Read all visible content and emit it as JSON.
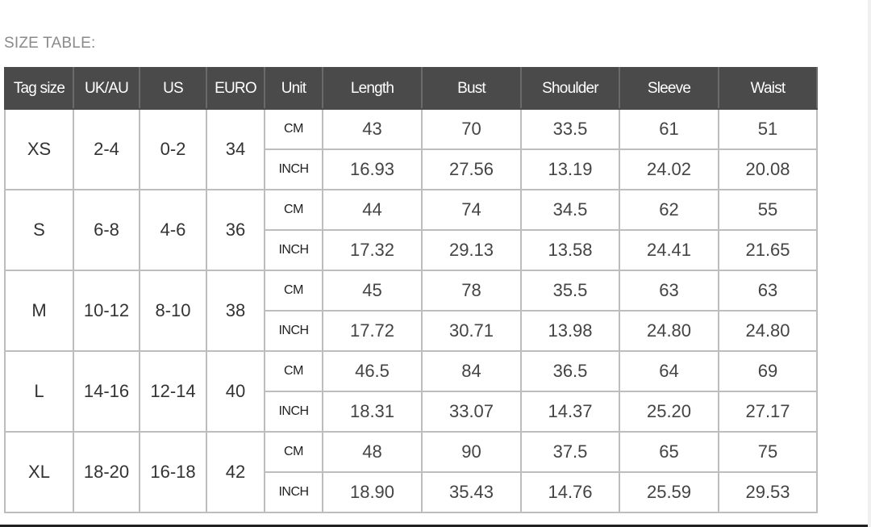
{
  "title": "SIZE TABLE:",
  "headers": [
    "Tag size",
    "UK/AU",
    "US",
    "EURO",
    "Unit",
    "Length",
    "Bust",
    "Shoulder",
    "Sleeve",
    "Waist"
  ],
  "rows": [
    {
      "tag": "XS",
      "ukau": "2-4",
      "us": "0-2",
      "euro": "34",
      "cm": {
        "unit": "CM",
        "values": [
          "43",
          "70",
          "33.5",
          "61",
          "51"
        ]
      },
      "inch": {
        "unit": "INCH",
        "values": [
          "16.93",
          "27.56",
          "13.19",
          "24.02",
          "20.08"
        ]
      }
    },
    {
      "tag": "S",
      "ukau": "6-8",
      "us": "4-6",
      "euro": "36",
      "cm": {
        "unit": "CM",
        "values": [
          "44",
          "74",
          "34.5",
          "62",
          "55"
        ]
      },
      "inch": {
        "unit": "INCH",
        "values": [
          "17.32",
          "29.13",
          "13.58",
          "24.41",
          "21.65"
        ]
      }
    },
    {
      "tag": "M",
      "ukau": "10-12",
      "us": "8-10",
      "euro": "38",
      "cm": {
        "unit": "CM",
        "values": [
          "45",
          "78",
          "35.5",
          "63",
          "63"
        ]
      },
      "inch": {
        "unit": "INCH",
        "values": [
          "17.72",
          "30.71",
          "13.98",
          "24.80",
          "24.80"
        ]
      }
    },
    {
      "tag": "L",
      "ukau": "14-16",
      "us": "12-14",
      "euro": "40",
      "cm": {
        "unit": "CM",
        "values": [
          "46.5",
          "84",
          "36.5",
          "64",
          "69"
        ]
      },
      "inch": {
        "unit": "INCH",
        "values": [
          "18.31",
          "33.07",
          "14.37",
          "25.20",
          "27.17"
        ]
      }
    },
    {
      "tag": "XL",
      "ukau": "18-20",
      "us": "16-18",
      "euro": "42",
      "cm": {
        "unit": "CM",
        "values": [
          "48",
          "90",
          "37.5",
          "65",
          "75"
        ]
      },
      "inch": {
        "unit": "INCH",
        "values": [
          "18.90",
          "35.43",
          "14.76",
          "25.59",
          "29.53"
        ]
      }
    }
  ],
  "colors": {
    "header_bg": "#4a4a4a",
    "header_text": "#ffffff",
    "grid": "#bdbdbd",
    "title": "#8a8a8a"
  }
}
